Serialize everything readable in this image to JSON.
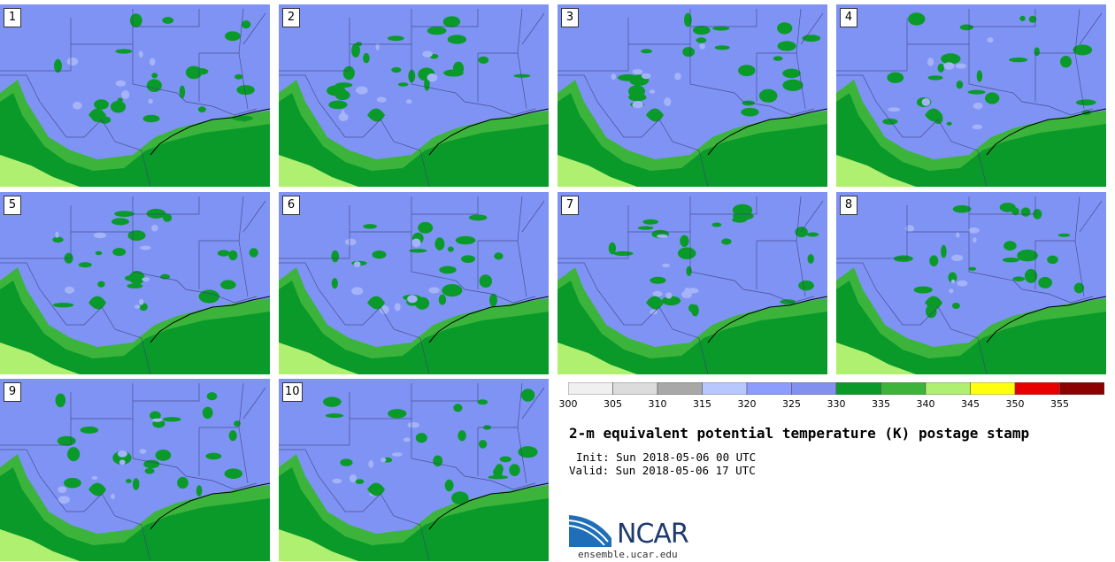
{
  "title": "2-m equivalent potential temperature (K) postage stamp",
  "init": "Init: Sun 2018-05-06 00 UTC",
  "valid": "Valid: Sun 2018-05-06 17 UTC",
  "site": "ensemble.ucar.edu",
  "logo_text": "NCAR",
  "members": [
    "1",
    "2",
    "3",
    "4",
    "5",
    "6",
    "7",
    "8",
    "9",
    "10"
  ],
  "colorbar": {
    "ticks": [
      "300",
      "305",
      "310",
      "315",
      "320",
      "325",
      "330",
      "335",
      "340",
      "345",
      "350",
      "355"
    ],
    "colors": [
      "#f0f0f0",
      "#dcdcdc",
      "#a8a8a8",
      "#b8c8ff",
      "#8c9cff",
      "#8290f0",
      "#0a9a2a",
      "#3cb43c",
      "#b0f070",
      "#ffff10",
      "#e80000",
      "#8b0000"
    ]
  },
  "map_colors": {
    "cool": "#7f93f5",
    "cool_light": "#a5b4f8",
    "warm1": "#0a9a2a",
    "warm2": "#3cb43c",
    "warm3": "#b0f070"
  }
}
